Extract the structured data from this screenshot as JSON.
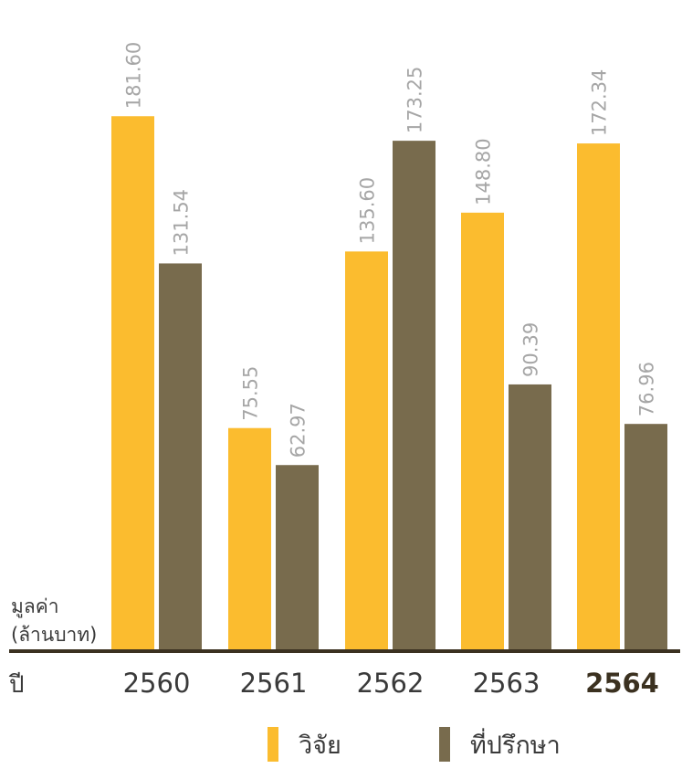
{
  "chart_data": {
    "type": "bar",
    "categories": [
      "2560",
      "2561",
      "2562",
      "2563",
      "2564"
    ],
    "highlight_category": "2564",
    "series": [
      {
        "name": "วิจัย",
        "color": "#FBBC2F",
        "values": [
          181.6,
          75.55,
          135.6,
          148.8,
          172.34
        ]
      },
      {
        "name": "ที่ปรึกษา",
        "color": "#786B4D",
        "values": [
          131.54,
          62.97,
          173.25,
          90.39,
          76.96
        ]
      }
    ],
    "value_labels": [
      [
        "181.60",
        "75.55",
        "135.60",
        "148.80",
        "172.34"
      ],
      [
        "131.54",
        "62.97",
        "173.25",
        "90.39",
        "76.96"
      ]
    ],
    "ylabel_line1": "มูลค่า",
    "ylabel_line2": "(ล้านบาท)",
    "xunit": "ปี",
    "ylim": [
      0,
      200
    ],
    "grid": false,
    "legend_position": "bottom-center",
    "axis_color": "#3B3120",
    "label_color": "#A6A6A6"
  }
}
